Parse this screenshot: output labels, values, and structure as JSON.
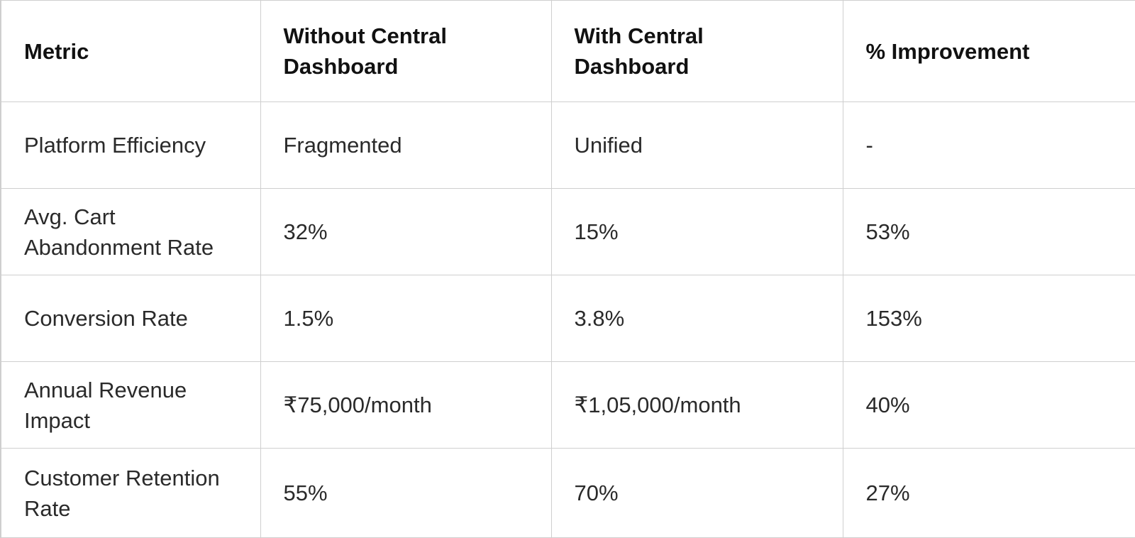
{
  "table": {
    "headers": [
      "Metric",
      "Without Central Dashboard",
      "With Central Dashboard",
      "% Improvement"
    ],
    "rows": [
      [
        "Platform Efficiency",
        "Fragmented",
        "Unified",
        "-"
      ],
      [
        "Avg. Cart Abandonment Rate",
        "32%",
        "15%",
        "53%"
      ],
      [
        "Conversion Rate",
        "1.5%",
        "3.8%",
        "153%"
      ],
      [
        "Annual Revenue Impact",
        "₹75,000/month",
        "₹1,05,000/month",
        "40%"
      ],
      [
        "Customer Retention Rate",
        "55%",
        "70%",
        "27%"
      ]
    ]
  },
  "colors": {
    "border": "#cfcfcf",
    "header_text": "#111111",
    "body_text": "#2a2a2a",
    "background": "#ffffff"
  }
}
